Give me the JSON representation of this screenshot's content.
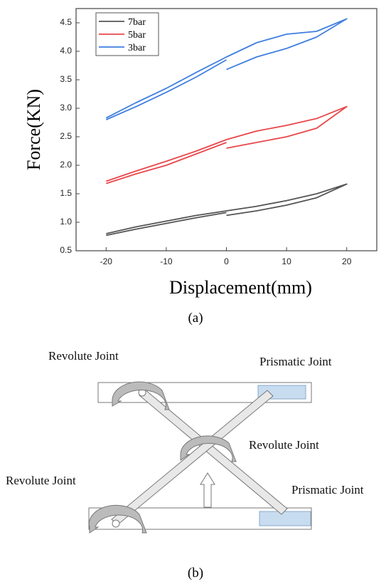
{
  "chart_data": {
    "type": "line",
    "xlabel": "Displacement(mm)",
    "ylabel": "Force(KN)",
    "xlim": [
      -25,
      25
    ],
    "xticks": [
      -20,
      -10,
      0,
      10,
      20
    ],
    "ylim": [
      0.5,
      4.75
    ],
    "yticks": [
      {
        "value": 0.5,
        "label": "0.5"
      },
      {
        "value": 1,
        "label": "1.0"
      },
      {
        "value": 1.5,
        "label": "1.5"
      },
      {
        "value": 2,
        "label": "2.0"
      },
      {
        "value": 2.5,
        "label": "2.5"
      },
      {
        "value": 3,
        "label": "3.0"
      },
      {
        "value": 3.5,
        "label": "3.5"
      },
      {
        "value": 4,
        "label": "4.0"
      },
      {
        "value": 4.5,
        "label": "4.5"
      }
    ],
    "grid": false,
    "legend": "upper left",
    "series": [
      {
        "name": "7bar",
        "color": "#555555",
        "x": [
          -20,
          -15,
          -10,
          -5,
          0,
          5,
          10,
          15,
          20,
          15,
          10,
          5,
          0,
          0,
          0,
          -5,
          -10,
          -15,
          -20
        ],
        "values": [
          0.8,
          0.92,
          1.02,
          1.12,
          1.2,
          1.28,
          1.38,
          1.5,
          1.67,
          1.43,
          1.3,
          1.2,
          1.12,
          null,
          1.17,
          1.08,
          0.98,
          0.88,
          0.77
        ]
      },
      {
        "name": "5bar",
        "color": "#e8474a",
        "x": [
          -20,
          -15,
          -10,
          -5,
          0,
          5,
          10,
          15,
          20,
          15,
          10,
          5,
          0,
          0,
          0,
          -5,
          -10,
          -15,
          -20
        ],
        "values": [
          1.72,
          1.9,
          2.07,
          2.25,
          2.45,
          2.6,
          2.7,
          2.82,
          3.03,
          2.65,
          2.5,
          2.4,
          2.3,
          null,
          2.4,
          2.2,
          2.0,
          1.85,
          1.68
        ]
      },
      {
        "name": "3bar",
        "color": "#3f7fe0",
        "x": [
          -20,
          -15,
          -10,
          -5,
          0,
          5,
          10,
          15,
          20,
          15,
          10,
          5,
          0,
          0,
          0,
          -5,
          -10,
          -15,
          -20
        ],
        "values": [
          2.83,
          3.1,
          3.35,
          3.63,
          3.9,
          4.15,
          4.3,
          4.35,
          4.57,
          4.25,
          4.05,
          3.9,
          3.68,
          null,
          3.85,
          3.55,
          3.28,
          3.03,
          2.8
        ]
      }
    ]
  },
  "caption_a": "(a)",
  "diagram": {
    "labels": [
      "Revolute Joint",
      "Prismatic Joint",
      "Revolute Joint",
      "Revolute Joint",
      "Prismatic Joint"
    ],
    "caption": "(b)"
  }
}
